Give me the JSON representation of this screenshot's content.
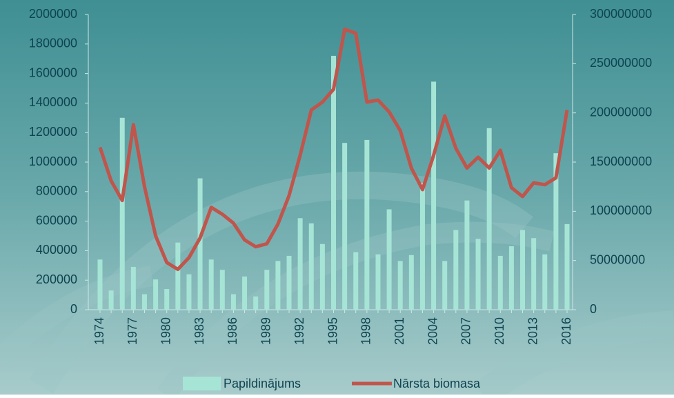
{
  "chart_data": {
    "type": "bar-line",
    "categories": [
      "1974",
      null,
      null,
      "1977",
      null,
      null,
      "1980",
      null,
      null,
      "1983",
      null,
      null,
      "1986",
      null,
      null,
      "1989",
      null,
      null,
      "1992",
      null,
      null,
      "1995",
      null,
      null,
      "1998",
      null,
      null,
      "2001",
      null,
      null,
      "2004",
      null,
      null,
      "2007",
      null,
      null,
      "2010",
      null,
      null,
      "2013",
      null,
      null,
      "2016"
    ],
    "series": [
      {
        "name": "Papildinājums",
        "type": "bar",
        "color": "#a6e4d6",
        "values": [
          340000,
          130000,
          1300000,
          290000,
          105000,
          205000,
          140000,
          455000,
          240000,
          890000,
          340000,
          270000,
          105000,
          225000,
          90000,
          270000,
          330000,
          365000,
          620000,
          585000,
          445000,
          1720000,
          1130000,
          390000,
          1150000,
          375000,
          680000,
          330000,
          370000,
          860000,
          1545000,
          330000,
          540000,
          740000,
          480000,
          1230000,
          365000,
          430000,
          540000,
          485000,
          375000,
          1060000,
          580000
        ]
      },
      {
        "name": "Nārsta biomasa",
        "type": "line",
        "axis": "y2",
        "color": "#c0554c",
        "values": [
          165000000,
          131000000,
          111000000,
          188000000,
          125000000,
          75000000,
          48000000,
          41000000,
          53000000,
          73000000,
          104000000,
          97000000,
          88000000,
          71000000,
          64000000,
          67000000,
          87000000,
          116000000,
          157000000,
          203000000,
          211000000,
          224000000,
          285000000,
          281000000,
          211000000,
          213000000,
          201000000,
          182000000,
          144000000,
          122000000,
          157000000,
          197000000,
          164000000,
          144000000,
          155000000,
          144000000,
          162000000,
          124000000,
          115000000,
          129000000,
          127000000,
          134000000,
          203000000
        ]
      }
    ],
    "ylim": [
      0,
      2000000
    ],
    "yticks": [
      0,
      200000,
      400000,
      600000,
      800000,
      1000000,
      1200000,
      1400000,
      1600000,
      1800000,
      2000000
    ],
    "y2lim": [
      0,
      300000000
    ],
    "y2ticks": [
      0,
      50000000,
      100000000,
      150000000,
      200000000,
      250000000,
      300000000
    ]
  }
}
